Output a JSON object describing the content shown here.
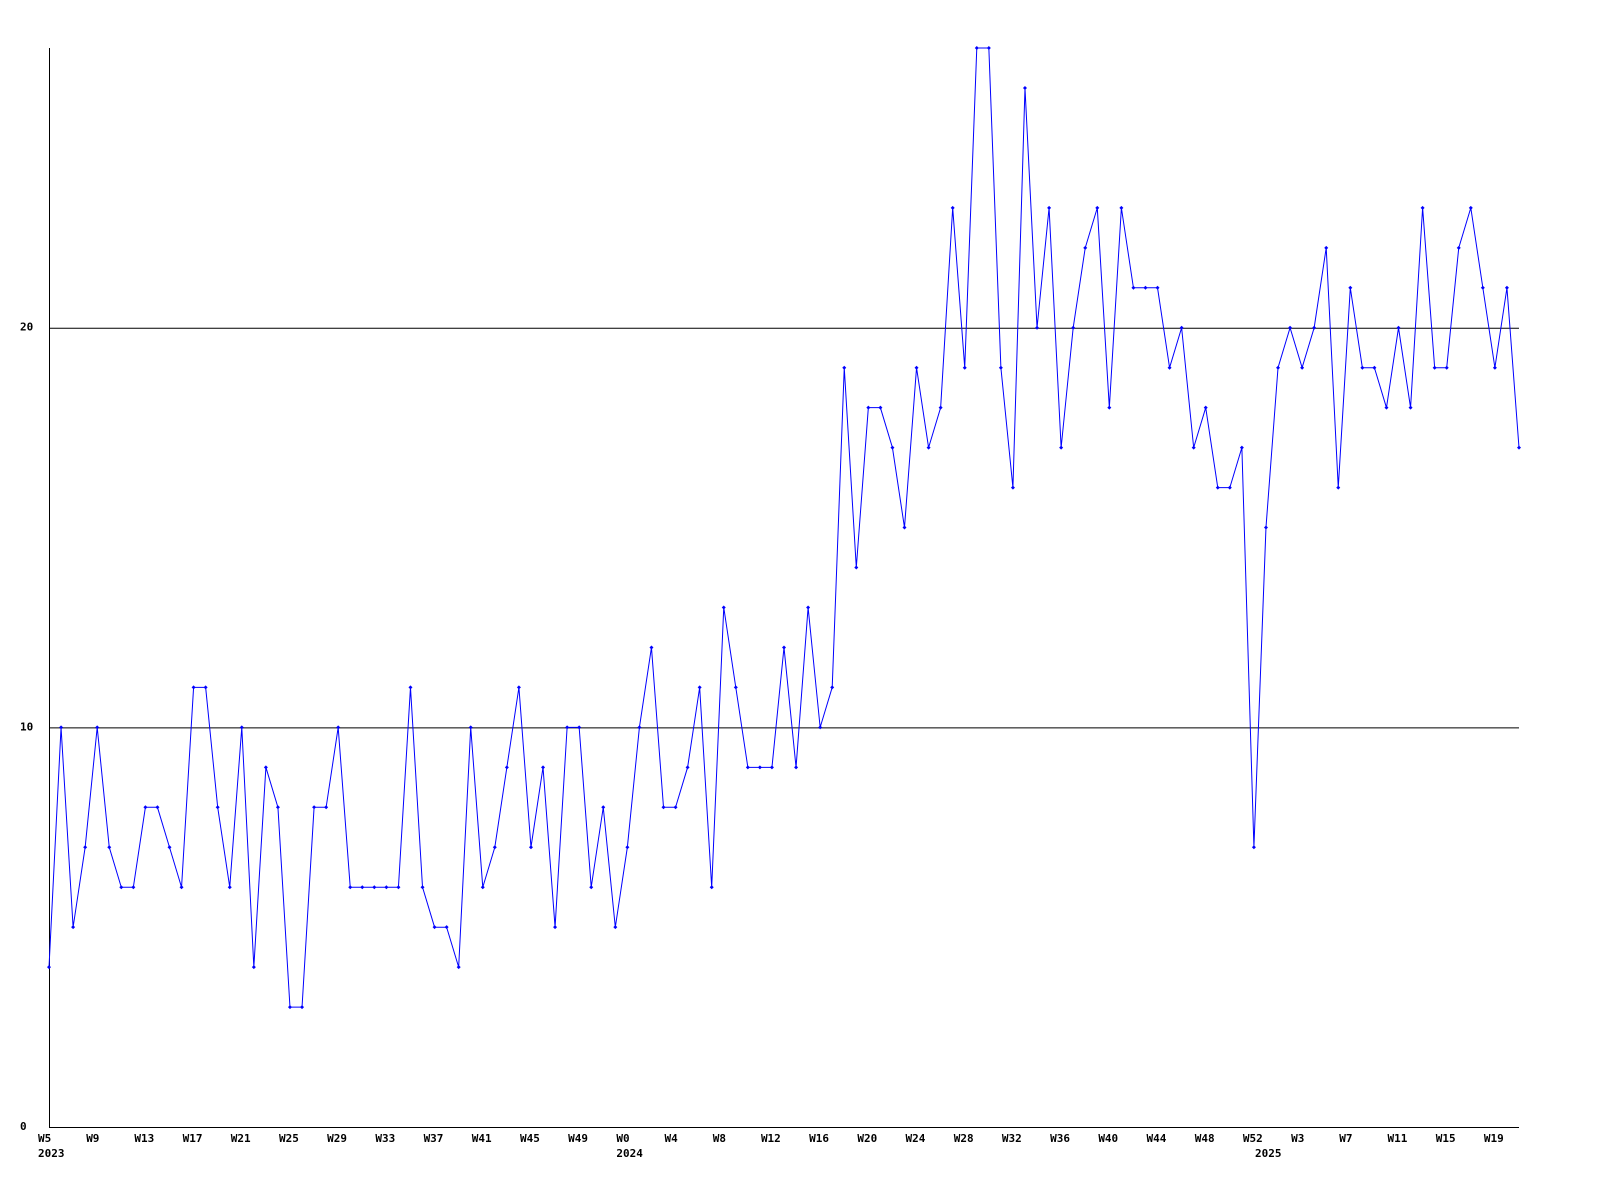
{
  "chart_data": {
    "type": "line",
    "categories": [
      "W5",
      null,
      null,
      null,
      "W9",
      null,
      null,
      null,
      "W13",
      null,
      null,
      null,
      "W17",
      null,
      null,
      null,
      "W21",
      null,
      null,
      null,
      "W25",
      null,
      null,
      null,
      "W29",
      null,
      null,
      null,
      "W33",
      null,
      null,
      null,
      "W37",
      null,
      null,
      null,
      "W41",
      null,
      null,
      null,
      "W45",
      null,
      null,
      null,
      "W49",
      null,
      null,
      null,
      "W0",
      null,
      null,
      null,
      "W4",
      null,
      null,
      null,
      "W8",
      null,
      null,
      null,
      "W12",
      null,
      null,
      null,
      "W16",
      null,
      null,
      null,
      "W20",
      null,
      null,
      null,
      "W24",
      null,
      null,
      null,
      "W28",
      null,
      null,
      null,
      "W32",
      null,
      null,
      null,
      "W36",
      null,
      null,
      null,
      "W40",
      null,
      null,
      null,
      "W44",
      null,
      null,
      null,
      "W48",
      null,
      null,
      null,
      "W52",
      null,
      null,
      null,
      "W3",
      null,
      null,
      null,
      "W7",
      null,
      null,
      null,
      "W11",
      null,
      null,
      null,
      "W15",
      null,
      null,
      null,
      "W19",
      null,
      null
    ],
    "years": [
      "2023",
      null,
      null,
      null,
      null,
      null,
      null,
      null,
      null,
      null,
      null,
      null,
      null,
      null,
      null,
      null,
      null,
      null,
      null,
      null,
      null,
      null,
      null,
      null,
      null,
      null,
      null,
      null,
      null,
      null,
      null,
      null,
      null,
      null,
      null,
      null,
      null,
      null,
      null,
      null,
      null,
      null,
      null,
      null,
      null,
      null,
      null,
      null,
      "2024",
      null,
      null,
      null,
      null,
      null,
      null,
      null,
      null,
      null,
      null,
      null,
      null,
      null,
      null,
      null,
      null,
      null,
      null,
      null,
      null,
      null,
      null,
      null,
      null,
      null,
      null,
      null,
      null,
      null,
      null,
      null,
      null,
      null,
      null,
      null,
      null,
      null,
      null,
      null,
      null,
      null,
      null,
      null,
      null,
      null,
      null,
      null,
      null,
      null,
      null,
      null,
      null,
      "2025",
      null,
      null,
      null,
      null,
      null,
      null,
      null,
      null,
      null,
      null,
      null,
      null,
      null,
      null,
      null,
      null,
      null,
      null,
      null,
      null,
      null
    ],
    "series": [
      {
        "color": "#0000ff",
        "values": [
          4,
          10,
          5,
          7,
          10,
          7,
          6,
          6,
          8,
          8,
          7,
          6,
          11,
          11,
          8,
          6,
          10,
          4,
          9,
          8,
          3,
          3,
          8,
          8,
          10,
          6,
          6,
          6,
          6,
          6,
          11,
          6,
          5,
          5,
          4,
          10,
          6,
          7,
          9,
          11,
          7,
          9,
          5,
          10,
          10,
          6,
          8,
          5,
          7,
          10,
          12,
          8,
          8,
          9,
          11,
          6,
          13,
          11,
          9,
          9,
          9,
          12,
          9,
          13,
          10,
          11,
          19,
          14,
          18,
          18,
          17,
          15,
          19,
          17,
          18,
          23,
          19,
          27,
          27,
          19,
          16,
          26,
          20,
          23,
          17,
          20,
          22,
          23,
          18,
          23,
          21,
          21,
          21,
          19,
          20,
          17,
          18,
          16,
          16,
          17,
          7,
          15,
          19,
          20,
          19,
          20,
          22,
          16,
          21,
          19,
          19,
          18,
          20,
          18,
          23,
          19,
          19,
          22,
          23,
          21,
          19,
          21,
          17
        ]
      }
    ],
    "ylim": [
      0,
      27
    ],
    "yticks": [
      0,
      10,
      20
    ],
    "grid": true
  }
}
